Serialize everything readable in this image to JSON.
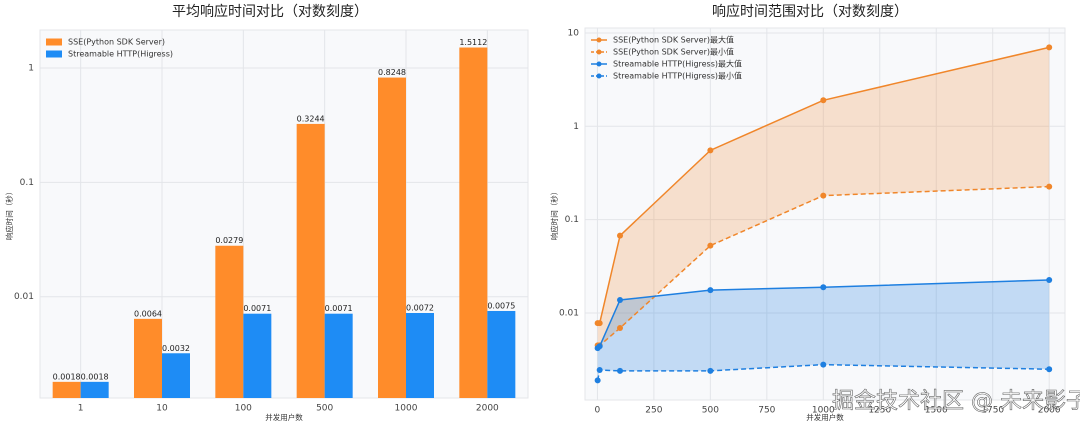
{
  "chart_data": [
    {
      "type": "bar",
      "title": "平均响应时间对比（对数刻度）",
      "x_label": "并发用户数",
      "y_label": "响应时间（秒）",
      "categories": [
        "1",
        "10",
        "100",
        "500",
        "1000",
        "2000"
      ],
      "series": [
        {
          "name": "SSE(Python SDK Server)",
          "color": "#ff8c2a",
          "values": [
            0.0018,
            0.0064,
            0.0279,
            0.3244,
            0.8248,
            1.5112
          ]
        },
        {
          "name": "Streamable HTTP(Higress)",
          "color": "#1e8cf5",
          "values": [
            0.0018,
            0.0032,
            0.0071,
            0.0071,
            0.0072,
            0.0075
          ]
        }
      ],
      "log_y": true,
      "ylim": [
        0.0013,
        2.15
      ],
      "yticks": [
        0.01,
        0.1,
        1
      ],
      "grid": true,
      "legend": "upper-left"
    },
    {
      "type": "line",
      "title": "响应时间范围对比（对数刻度）",
      "x_label": "并发用户数",
      "y_label": "响应时间（秒）",
      "x": [
        1,
        10,
        100,
        500,
        1000,
        2000
      ],
      "series": [
        {
          "name": "SSE(Python SDK Server)最大值",
          "color": "#f0862a",
          "dash": false,
          "values": [
            0.0078,
            0.0078,
            0.0674,
            0.553,
            1.9,
            7.0
          ]
        },
        {
          "name": "SSE(Python SDK Server)最小值",
          "color": "#f0862a",
          "dash": true,
          "values": [
            0.0045,
            0.0045,
            0.0069,
            0.0527,
            0.181,
            0.226
          ]
        },
        {
          "name": "Streamable HTTP(Higress)最大值",
          "color": "#1e7fe0",
          "dash": false,
          "values": [
            0.0042,
            0.0044,
            0.0138,
            0.0176,
            0.0189,
            0.0226
          ]
        },
        {
          "name": "Streamable HTTP(Higress)最小值",
          "color": "#1e7fe0",
          "dash": true,
          "values": [
            0.0019,
            0.00245,
            0.0024,
            0.0024,
            0.0028,
            0.0025
          ]
        }
      ],
      "log_y": true,
      "xlim": [
        -55,
        2070
      ],
      "ylim": [
        0.00117,
        11.3
      ],
      "xticks": [
        0,
        250,
        500,
        750,
        1000,
        1250,
        1500,
        1750,
        2000
      ],
      "yticks": [
        0.01,
        0.1,
        1,
        10
      ],
      "grid": true,
      "legend": "upper-left"
    }
  ],
  "watermark": "掘金技术社区 @ 未来影子"
}
